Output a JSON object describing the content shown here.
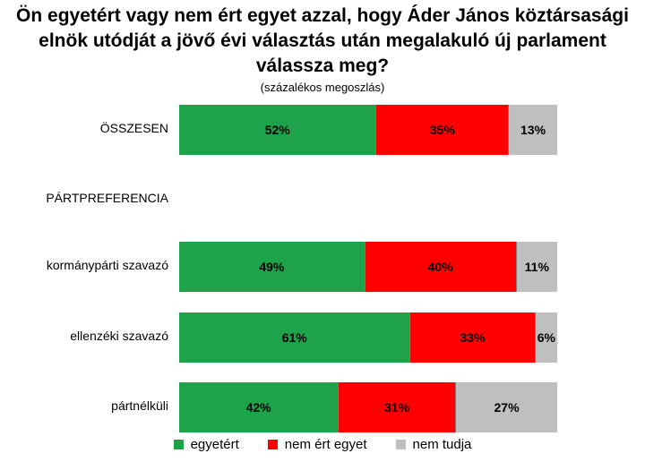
{
  "chart_data": {
    "type": "bar",
    "orientation": "horizontal",
    "stacked": true,
    "title": "Ön egyetért vagy nem ért egyet azzal, hogy Áder János köztársasági elnök utódját a jövő évi választás után megalakuló új parlament válassza meg?",
    "title_lines": [
      "Ön egyetért vagy nem ért egyet azzal, hogy Áder János köztársasági",
      "elnök utódját a jövő évi választás után megalakuló új parlament",
      "válassza meg?"
    ],
    "subtitle": "(százalékos megoszlás)",
    "categories": [
      "ÖSSZESEN",
      "PÁRTPREFERENCIA",
      "kormánypárti szavazó",
      "ellenzéki szavazó",
      "pártnélküli"
    ],
    "series": [
      {
        "name": "egyetért",
        "color": "#1fa34a",
        "values": [
          52,
          null,
          49,
          61,
          42
        ]
      },
      {
        "name": "nem ért egyet",
        "color": "#ff0000",
        "values": [
          35,
          null,
          40,
          33,
          31
        ]
      },
      {
        "name": "nem tudja",
        "color": "#bfbfbf",
        "values": [
          13,
          null,
          11,
          6,
          27
        ]
      }
    ],
    "value_unit": "%",
    "legend_position": "bottom",
    "grid": false
  }
}
